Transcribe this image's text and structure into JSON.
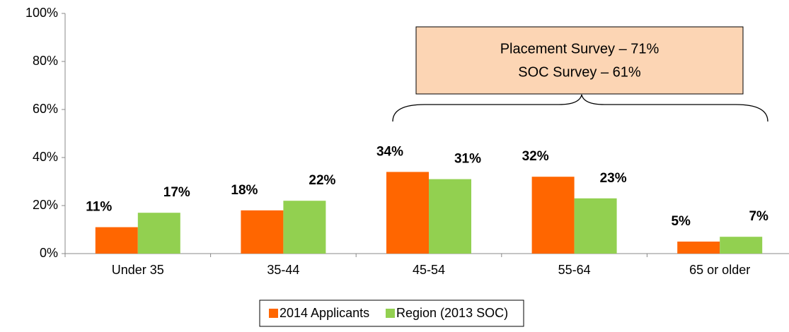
{
  "chart_data": {
    "type": "bar",
    "categories": [
      "Under 35",
      "35-44",
      "45-54",
      "55-64",
      "65 or older"
    ],
    "series": [
      {
        "name": "2014 Applicants",
        "color": "#ff6600",
        "values": [
          11,
          18,
          34,
          32,
          5
        ],
        "value_labels": [
          "11%",
          "18%",
          "34%",
          "32%",
          "5%"
        ]
      },
      {
        "name": "Region (2013 SOC)",
        "color": "#92d050",
        "values": [
          17,
          22,
          31,
          23,
          7
        ],
        "value_labels": [
          "17%",
          "22%",
          "31%",
          "23%",
          "7%"
        ]
      }
    ],
    "ylim": [
      0,
      100
    ],
    "yticks": [
      {
        "value": 0,
        "label": "0%"
      },
      {
        "value": 20,
        "label": "20%"
      },
      {
        "value": 40,
        "label": "40%"
      },
      {
        "value": 60,
        "label": "60%"
      },
      {
        "value": 80,
        "label": "80%"
      },
      {
        "value": 100,
        "label": "100%"
      }
    ],
    "annotations": [
      "Placement Survey – 71%",
      "SOC Survey – 61%"
    ],
    "legend": "bottom"
  }
}
